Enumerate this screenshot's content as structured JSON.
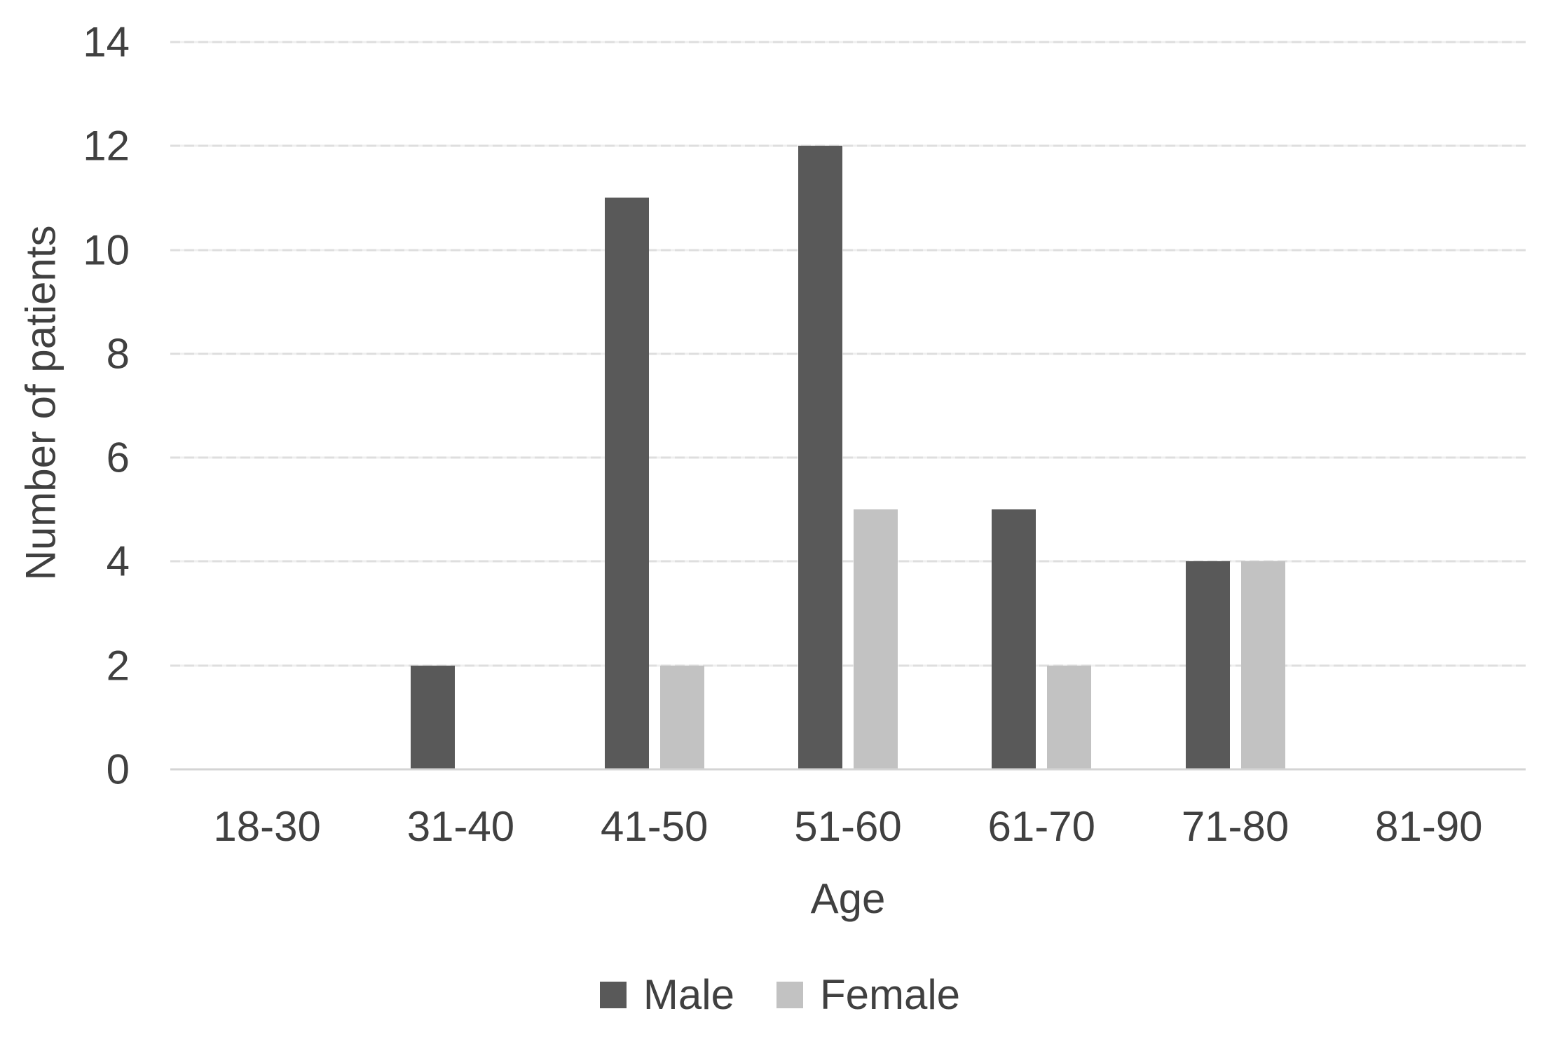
{
  "chart_data": {
    "type": "bar",
    "title": "",
    "categories": [
      "18-30",
      "31-40",
      "41-50",
      "51-60",
      "61-70",
      "71-80",
      "81-90"
    ],
    "series": [
      {
        "name": "Male",
        "color": "#595959",
        "values": [
          0,
          2,
          11,
          12,
          5,
          4,
          0
        ]
      },
      {
        "name": "Female",
        "color": "#c2c2c2",
        "values": [
          0,
          0,
          2,
          5,
          2,
          4,
          0
        ]
      }
    ],
    "xlabel": "Age",
    "ylabel": "Number of patients",
    "ylim": [
      0,
      14
    ],
    "ytick_step": 2,
    "grid": true,
    "legend_position": "bottom",
    "colors": {
      "text": "#404040",
      "gridline": "#dedede",
      "axis_line": "#d4d4d4",
      "background": "#ffffff"
    }
  }
}
